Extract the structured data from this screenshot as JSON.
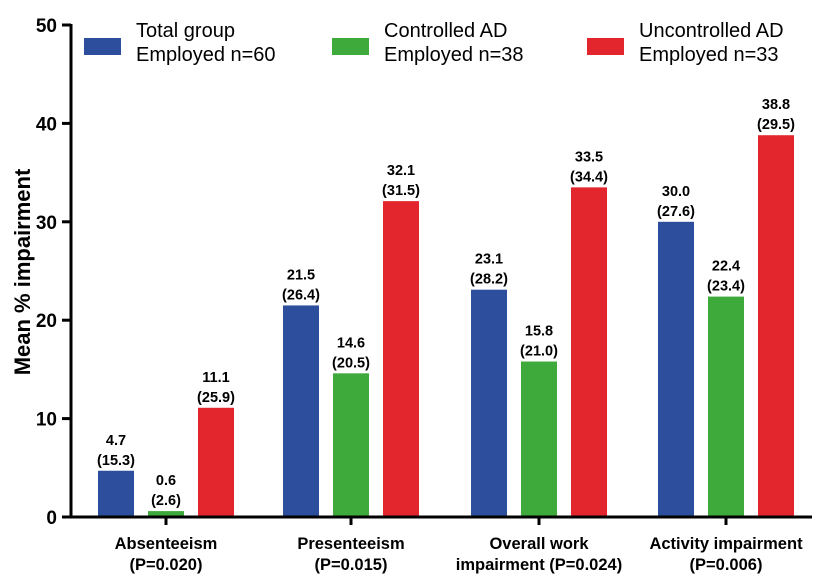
{
  "chart_data": {
    "type": "bar",
    "ylabel": "Mean % impairment",
    "ylim": [
      0,
      50
    ],
    "yticks": [
      0,
      10,
      20,
      30,
      40,
      50
    ],
    "legend_position": "top",
    "categories": [
      [
        "Absenteeism",
        "(P=0.020)"
      ],
      [
        "Presenteeism",
        "(P=0.015)"
      ],
      [
        "Overall work",
        "impairment (P=0.024)"
      ],
      [
        "Activity impairment",
        "(P=0.006)"
      ]
    ],
    "series": [
      {
        "name": [
          "Total group",
          "Employed n=60"
        ],
        "color": "#2d4e9c",
        "values": [
          4.7,
          21.5,
          23.1,
          30.0
        ],
        "labels": [
          [
            "4.7",
            "(15.3)"
          ],
          [
            "21.5",
            "(26.4)"
          ],
          [
            "23.1",
            "(28.2)"
          ],
          [
            "30.0",
            "(27.6)"
          ]
        ]
      },
      {
        "name": [
          "Controlled AD",
          "Employed n=38"
        ],
        "color": "#3faa3c",
        "values": [
          0.6,
          14.6,
          15.8,
          22.4
        ],
        "labels": [
          [
            "0.6",
            "(2.6)"
          ],
          [
            "14.6",
            "(20.5)"
          ],
          [
            "15.8",
            "(21.0)"
          ],
          [
            "22.4",
            "(23.4)"
          ]
        ]
      },
      {
        "name": [
          "Uncontrolled AD",
          "Employed n=33"
        ],
        "color": "#e3262d",
        "values": [
          11.1,
          32.1,
          33.5,
          38.8
        ],
        "labels": [
          [
            "11.1",
            "(25.9)"
          ],
          [
            "32.1",
            "(31.5)"
          ],
          [
            "33.5",
            "(34.4)"
          ],
          [
            "38.8",
            "(29.5)"
          ]
        ]
      }
    ]
  }
}
